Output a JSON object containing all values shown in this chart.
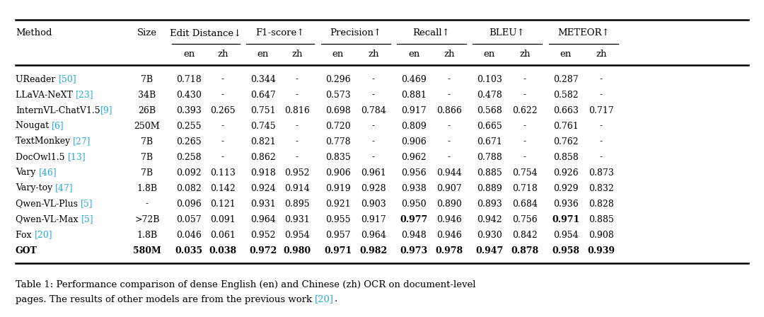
{
  "methods": [
    "UReader ",
    "[50]",
    "",
    "LLaVA-NeXT ",
    "[23]",
    "",
    "InternVL-ChatV1.5",
    "[9]",
    "",
    "Nougat ",
    "[6]",
    "",
    "TextMonkey ",
    "[27]",
    "",
    "DocOwl1.5 ",
    "[13]",
    "",
    "Vary ",
    "[46]",
    "",
    "Vary-toy ",
    "[47]",
    "",
    "Qwen-VL-Plus ",
    "[5]",
    "",
    "Qwen-VL-Max ",
    "[5]",
    "",
    "Fox ",
    "[20]",
    "",
    "GOT",
    "",
    ""
  ],
  "method_bold": [
    false,
    false,
    false,
    false,
    false,
    false,
    false,
    false,
    false,
    false,
    false,
    true
  ],
  "sizes": [
    "7B",
    "34B",
    "26B",
    "250M",
    "7B",
    "7B",
    "7B",
    "1.8B",
    "-",
    ">72B",
    "1.8B",
    "580M"
  ],
  "edit_dist_en": [
    "0.718",
    "0.430",
    "0.393",
    "0.255",
    "0.265",
    "0.258",
    "0.092",
    "0.082",
    "0.096",
    "0.057",
    "0.046",
    "0.035"
  ],
  "edit_dist_zh": [
    "-",
    "-",
    "0.265",
    "-",
    "-",
    "-",
    "0.113",
    "0.142",
    "0.121",
    "0.091",
    "0.061",
    "0.038"
  ],
  "f1_en": [
    "0.344",
    "0.647",
    "0.751",
    "0.745",
    "0.821",
    "0.862",
    "0.918",
    "0.924",
    "0.931",
    "0.964",
    "0.952",
    "0.972"
  ],
  "f1_zh": [
    "-",
    "-",
    "0.816",
    "-",
    "-",
    "-",
    "0.952",
    "0.914",
    "0.895",
    "0.931",
    "0.954",
    "0.980"
  ],
  "prec_en": [
    "0.296",
    "0.573",
    "0.698",
    "0.720",
    "0.778",
    "0.835",
    "0.906",
    "0.919",
    "0.921",
    "0.955",
    "0.957",
    "0.971"
  ],
  "prec_zh": [
    "-",
    "-",
    "0.784",
    "-",
    "-",
    "-",
    "0.961",
    "0.928",
    "0.903",
    "0.917",
    "0.964",
    "0.982"
  ],
  "recall_en": [
    "0.469",
    "0.881",
    "0.917",
    "0.809",
    "0.906",
    "0.962",
    "0.956",
    "0.938",
    "0.950",
    "0.977",
    "0.948",
    "0.973"
  ],
  "recall_zh": [
    "-",
    "-",
    "0.866",
    "-",
    "-",
    "-",
    "0.944",
    "0.907",
    "0.890",
    "0.946",
    "0.946",
    "0.978"
  ],
  "bleu_en": [
    "0.103",
    "0.478",
    "0.568",
    "0.665",
    "0.671",
    "0.788",
    "0.885",
    "0.889",
    "0.893",
    "0.942",
    "0.930",
    "0.947"
  ],
  "bleu_zh": [
    "-",
    "-",
    "0.622",
    "-",
    "-",
    "-",
    "0.754",
    "0.718",
    "0.684",
    "0.756",
    "0.842",
    "0.878"
  ],
  "meteor_en": [
    "0.287",
    "0.582",
    "0.663",
    "0.761",
    "0.762",
    "0.858",
    "0.926",
    "0.929",
    "0.936",
    "0.971",
    "0.954",
    "0.958"
  ],
  "meteor_zh": [
    "-",
    "-",
    "0.717",
    "-",
    "-",
    "-",
    "0.873",
    "0.832",
    "0.828",
    "0.885",
    "0.908",
    "0.939"
  ],
  "bold_cells": {
    "edit_dist_en": [
      11
    ],
    "edit_dist_zh": [
      11
    ],
    "f1_en": [
      11
    ],
    "f1_zh": [
      11
    ],
    "prec_en": [
      11
    ],
    "prec_zh": [
      11
    ],
    "recall_en": [
      9,
      11
    ],
    "recall_zh": [
      11
    ],
    "bleu_en": [
      11
    ],
    "bleu_zh": [
      11
    ],
    "meteor_en": [
      9,
      11
    ],
    "meteor_zh": [
      11
    ]
  },
  "ref_color": "#29ABD4",
  "bg_color": "#FFFFFF",
  "col_headers": [
    "Edit Distance↓",
    "F1-score↑",
    "Precision↑",
    "Recall↑",
    "BLEU↑",
    "METEOR↑"
  ],
  "caption_line1": "Table 1: Performance comparison of dense English (en) and Chinese (zh) OCR on document-level",
  "caption_line2_parts": [
    "pages. The results of other models are from the previous work ",
    "[20]",
    "."
  ]
}
